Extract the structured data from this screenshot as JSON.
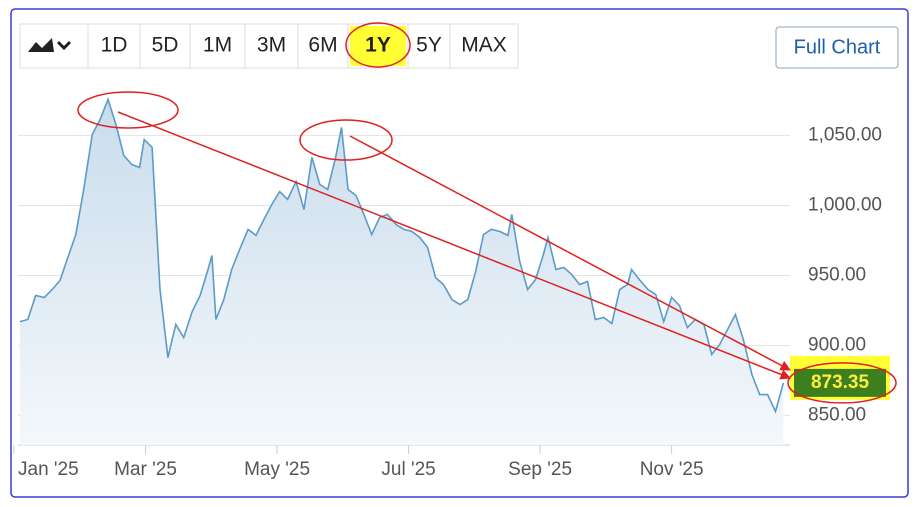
{
  "toolbar": {
    "ranges": [
      "1D",
      "5D",
      "1M",
      "3M",
      "6M",
      "1Y",
      "5Y",
      "MAX"
    ],
    "full_chart": "Full Chart"
  },
  "chart_data": {
    "type": "area",
    "x": [
      0.09,
      0.21,
      0.33,
      0.46,
      0.58,
      0.7,
      0.82,
      0.94,
      1.06,
      1.19,
      1.31,
      1.43,
      1.55,
      1.67,
      1.79,
      1.91,
      1.98,
      2.1,
      2.22,
      2.34,
      2.46,
      2.58,
      2.71,
      2.83,
      2.95,
      3.01,
      3.07,
      3.19,
      3.31,
      3.43,
      3.56,
      3.68,
      3.8,
      3.92,
      4.04,
      4.16,
      4.29,
      4.41,
      4.53,
      4.65,
      4.77,
      4.89,
      4.98,
      5.08,
      5.2,
      5.32,
      5.44,
      5.56,
      5.68,
      5.81,
      5.93,
      6.05,
      6.17,
      6.29,
      6.41,
      6.53,
      6.66,
      6.78,
      6.9,
      7.02,
      7.14,
      7.26,
      7.39,
      7.51,
      7.57,
      7.69,
      7.81,
      7.93,
      8.05,
      8.12,
      8.24,
      8.36,
      8.48,
      8.6,
      8.72,
      8.84,
      8.97,
      9.09,
      9.21,
      9.33,
      9.39,
      9.51,
      9.64,
      9.76,
      9.88,
      10.0,
      10.12,
      10.24,
      10.36,
      10.49,
      10.61,
      10.73,
      10.85,
      10.97,
      11.09,
      11.22,
      11.34,
      11.46,
      11.58,
      11.7
    ],
    "values": [
      917.1,
      918.6,
      935.7,
      934.3,
      940,
      946.4,
      962.9,
      979.3,
      1011.4,
      1050.7,
      1061.4,
      1075.7,
      1057.9,
      1035.7,
      1029.3,
      1027.1,
      1047.1,
      1041.4,
      940,
      891.4,
      915,
      905.7,
      924.3,
      935.7,
      954.3,
      964.3,
      918.6,
      932.9,
      954.3,
      968.6,
      982.9,
      978.6,
      990,
      1000.7,
      1010,
      1004.3,
      1017.1,
      997.1,
      1034.3,
      1015,
      1011.4,
      1034.3,
      1055.7,
      1011.4,
      1007.1,
      993.6,
      979.3,
      991.4,
      993.6,
      986.4,
      982.9,
      981.4,
      977.1,
      970,
      948.6,
      943.6,
      932.9,
      929.3,
      932.9,
      952.9,
      979.3,
      982.9,
      981.4,
      978.6,
      993.6,
      960,
      940,
      947.1,
      965,
      977.1,
      954.3,
      955.7,
      950.7,
      943.6,
      945.7,
      918.6,
      920,
      915.7,
      940,
      943.6,
      954.3,
      947.1,
      940,
      936.4,
      917.1,
      934.3,
      928.6,
      912.9,
      918.6,
      915,
      893.6,
      900.7,
      911.4,
      922.1,
      904.3,
      879.3,
      865,
      865,
      852.9,
      873.35
    ],
    "color": "#5b9bc8",
    "xlim": [
      0,
      11.8
    ],
    "xticks": [
      {
        "value": 0,
        "label": "Jan '25"
      },
      {
        "value": 2,
        "label": "Mar '25"
      },
      {
        "value": 4,
        "label": "May '25"
      },
      {
        "value": 6,
        "label": "Jul '25"
      },
      {
        "value": 8,
        "label": "Sep '25"
      },
      {
        "value": 10,
        "label": "Nov '25"
      }
    ],
    "ylim": [
      829,
      1086
    ],
    "yticks": [
      {
        "value": 850,
        "label": "850.00"
      },
      {
        "value": 900,
        "label": "900.00"
      },
      {
        "value": 950,
        "label": "950.00"
      },
      {
        "value": 1000,
        "label": "1,000.00"
      },
      {
        "value": 1050,
        "label": "1,050.00"
      }
    ],
    "grid": true
  }
}
